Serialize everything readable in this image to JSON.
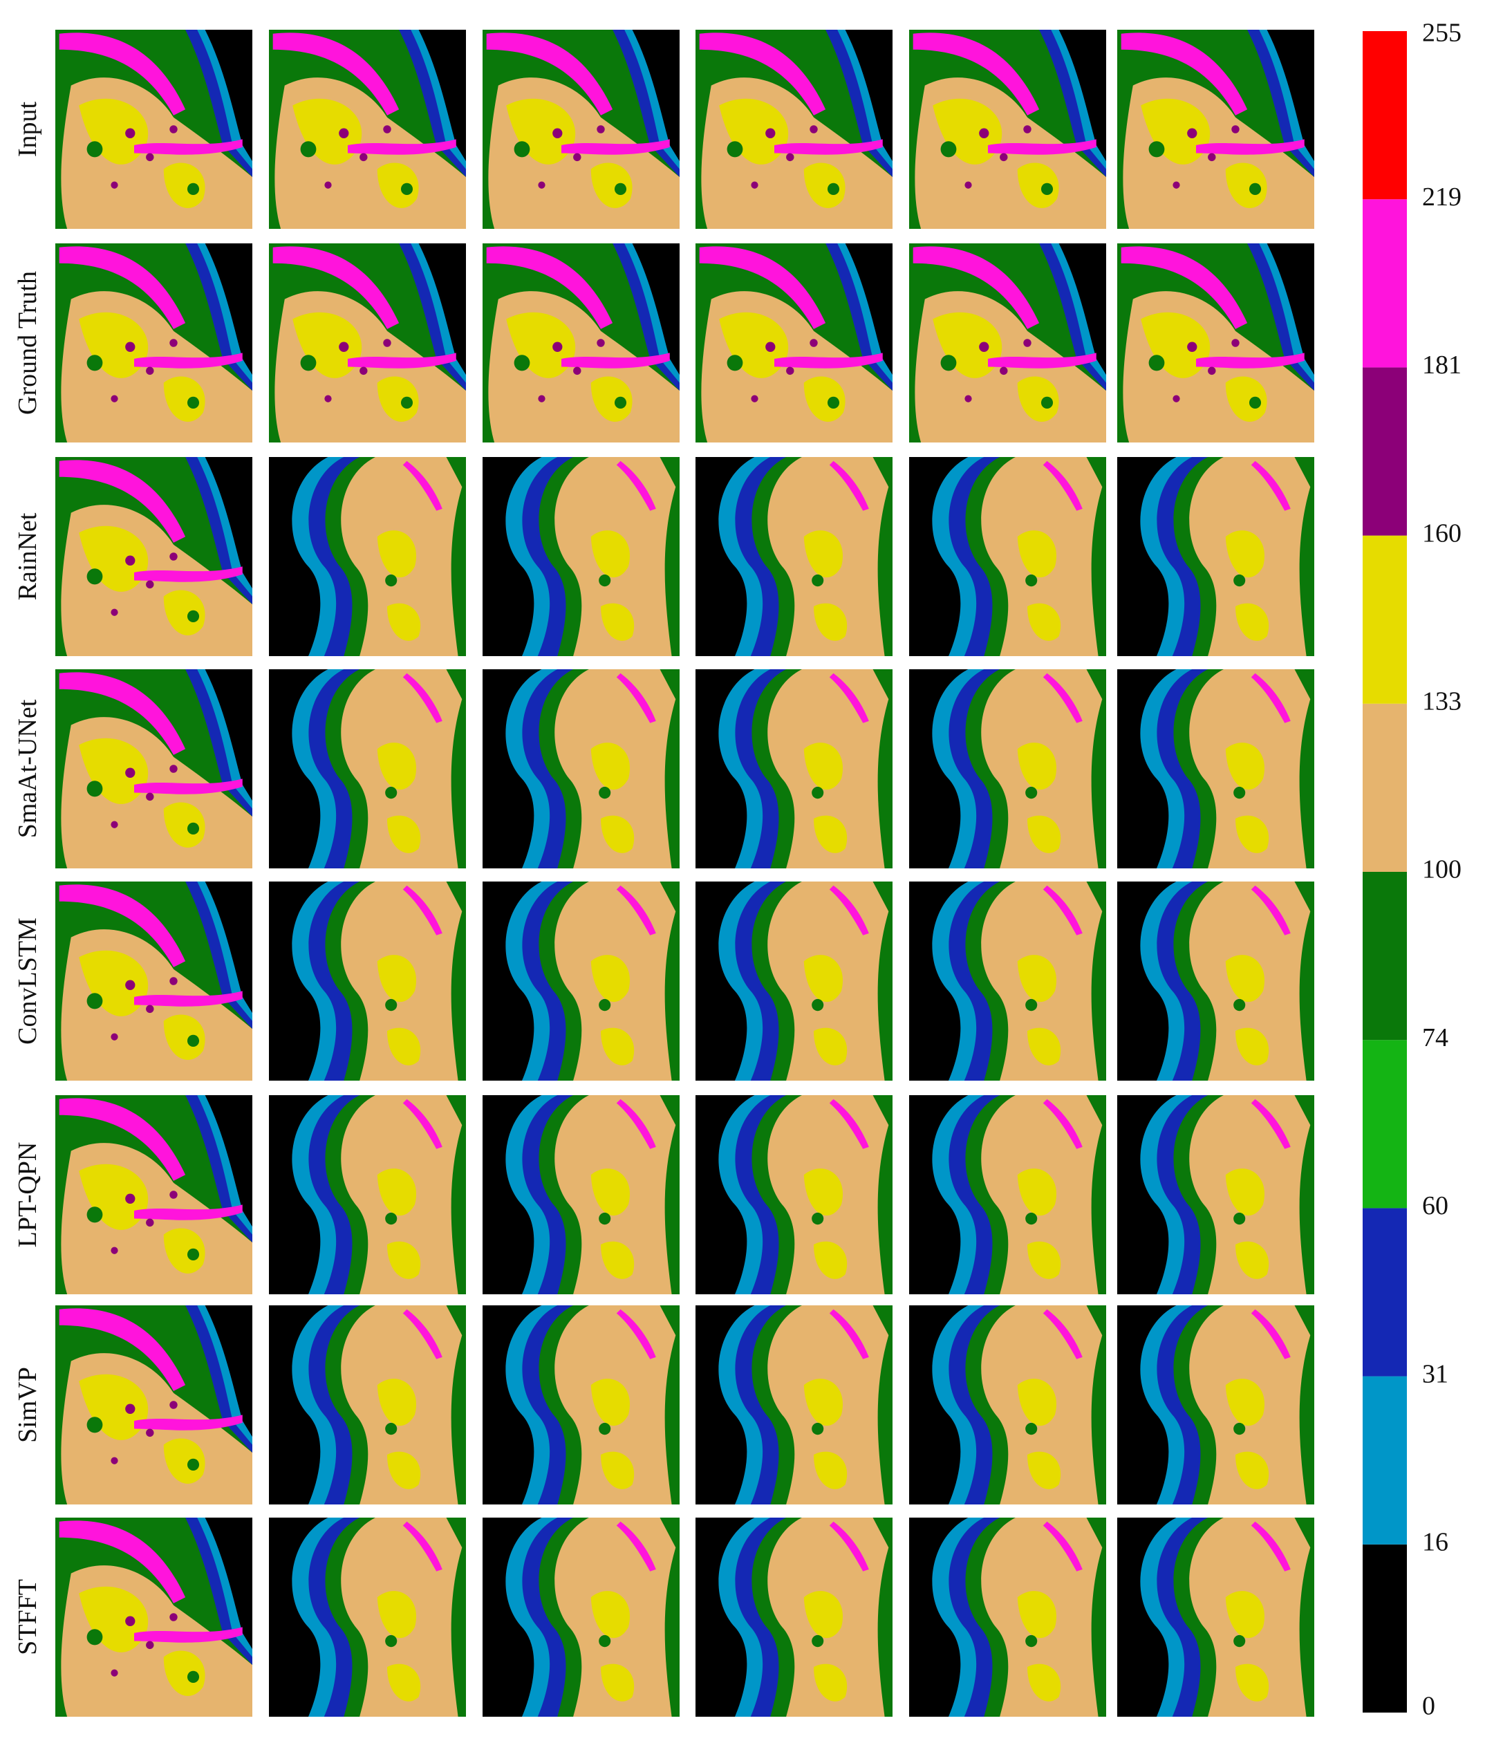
{
  "rows": [
    "Input",
    "Ground Truth",
    "RainNet",
    "SmaAt-UNet",
    "ConvLSTM",
    "LPT-QPN",
    "SimVP",
    "STFFT"
  ],
  "colorbar": {
    "labels": [
      "0",
      "16",
      "31",
      "60",
      "74",
      "100",
      "133",
      "160",
      "181",
      "219",
      "255"
    ],
    "colors": [
      "#000000",
      "#0096c8",
      "#1428b4",
      "#14b414",
      "#0a780a",
      "#e6b46e",
      "#e6dc00",
      "#8c0078",
      "#ff14dc",
      "#ff0000"
    ]
  }
}
